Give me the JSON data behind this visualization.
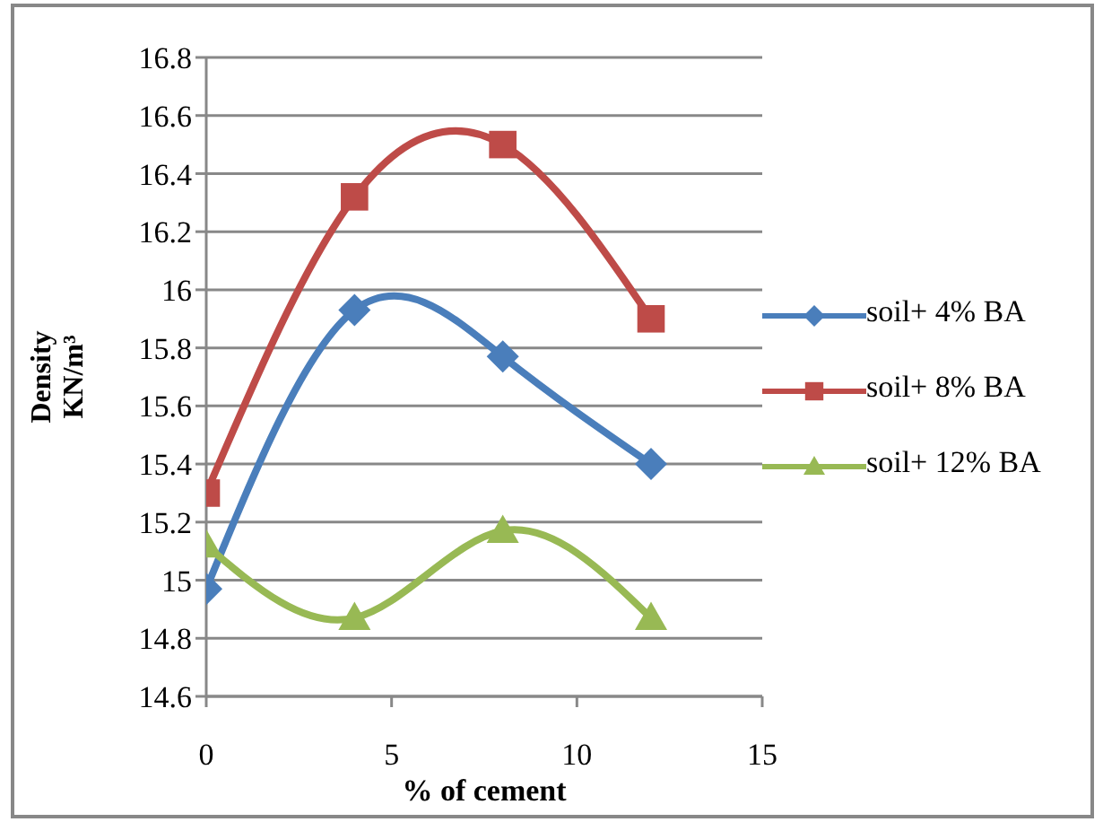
{
  "chart_data": {
    "type": "line",
    "xlabel": "% of cement",
    "ylabel": "Density KN/m³",
    "x": [
      0,
      4,
      8,
      12
    ],
    "xlim": [
      0,
      15
    ],
    "xticks": [
      0,
      5,
      10,
      15
    ],
    "ylim": [
      14.6,
      16.8
    ],
    "yticks": [
      14.6,
      14.8,
      15,
      15.2,
      15.4,
      15.6,
      15.8,
      16,
      16.2,
      16.4,
      16.6,
      16.8
    ],
    "grid": "y",
    "legend": "right",
    "series": [
      {
        "name": "soil+ 4% BA",
        "color": "#4a7ebb",
        "marker": "diamond",
        "values": [
          14.97,
          15.93,
          15.77,
          15.4
        ]
      },
      {
        "name": "soil+ 8% BA",
        "color": "#be4b48",
        "marker": "square",
        "values": [
          15.3,
          16.32,
          16.5,
          15.9
        ]
      },
      {
        "name": "soil+ 12% BA",
        "color": "#98b954",
        "marker": "triangle",
        "values": [
          15.12,
          14.87,
          15.17,
          14.87
        ]
      }
    ]
  }
}
